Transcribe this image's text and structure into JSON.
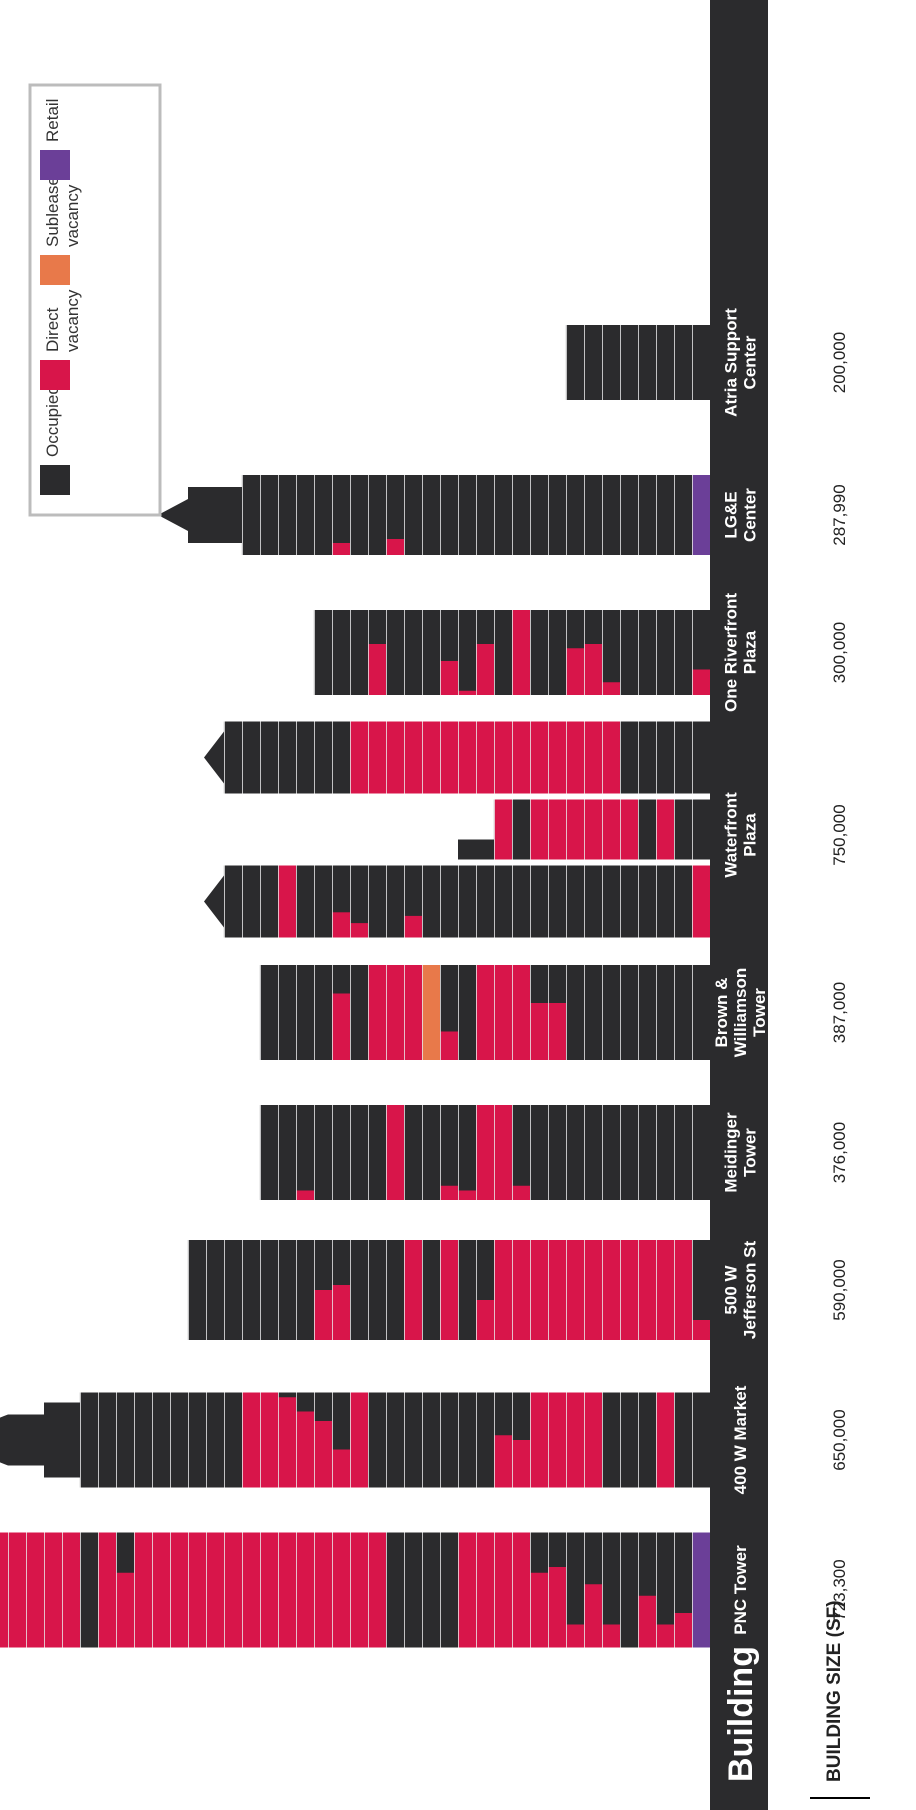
{
  "colors": {
    "occupied": "#2b2b2d",
    "direct_vacancy": "#d8154a",
    "sublease_vacancy": "#e8794a",
    "retail": "#6b3f98",
    "band": "#2b2b2d",
    "band_text": "#ffffff",
    "floor_line": "#e9e9e9"
  },
  "chart_data": {
    "type": "bar",
    "title": "",
    "header_label": "Building",
    "size_row_label": "BUILDING SIZE (SF)",
    "legend": [
      {
        "key": "occupied",
        "lines": [
          "Occupied"
        ]
      },
      {
        "key": "direct_vacancy",
        "lines": [
          "Direct",
          "vacancy"
        ]
      },
      {
        "key": "sublease_vacancy",
        "lines": [
          "Sublease",
          "vacancy"
        ]
      },
      {
        "key": "retail",
        "lines": [
          "Retail"
        ]
      }
    ],
    "buildings": [
      {
        "name_lines": [
          "PNC Tower"
        ],
        "size_sf": "723,300",
        "floors": 40,
        "top": "flat",
        "ground_floor": "retail",
        "direct_vacancy_floors": [
          1,
          11,
          12,
          13,
          14,
          19,
          20,
          21,
          22,
          23,
          24,
          25,
          26,
          27,
          28,
          29,
          30,
          31,
          32,
          34,
          36,
          37,
          38,
          39,
          40
        ],
        "partial_vacancy": [
          {
            "floor": 2,
            "share": 0.3
          },
          {
            "floor": 3,
            "share": 0.2
          },
          {
            "floor": 4,
            "share": 0.45
          },
          {
            "floor": 6,
            "share": 0.2
          },
          {
            "floor": 7,
            "share": 0.55
          },
          {
            "floor": 8,
            "share": 0.2
          },
          {
            "floor": 9,
            "share": 0.7
          },
          {
            "floor": 10,
            "share": 0.65
          },
          {
            "floor": 33,
            "share": 0.65
          }
        ]
      },
      {
        "name_lines": [
          "400 W Market"
        ],
        "size_sf": "650,000",
        "floors": 35,
        "top": "dome",
        "direct_vacancy_floors": [
          3,
          7,
          8,
          9,
          10,
          20,
          25,
          26
        ],
        "partial_vacancy": [
          {
            "floor": 11,
            "share": 0.5
          },
          {
            "floor": 12,
            "share": 0.55
          },
          {
            "floor": 21,
            "share": 0.4
          },
          {
            "floor": 22,
            "share": 0.7
          },
          {
            "floor": 23,
            "share": 0.8
          },
          {
            "floor": 24,
            "share": 0.95
          }
        ]
      },
      {
        "name_lines": [
          "500 W",
          "Jefferson St"
        ],
        "size_sf": "590,000",
        "floors": 29,
        "top": "flat",
        "direct_vacancy_floors": [
          2,
          3,
          4,
          5,
          6,
          7,
          8,
          9,
          10,
          11,
          12,
          15,
          17
        ],
        "partial_vacancy": [
          {
            "floor": 1,
            "share": 0.2
          },
          {
            "floor": 13,
            "share": 0.4
          },
          {
            "floor": 21,
            "share": 0.55
          },
          {
            "floor": 22,
            "share": 0.5
          }
        ]
      },
      {
        "name_lines": [
          "Meidinger",
          "Tower"
        ],
        "size_sf": "376,000",
        "floors": 25,
        "top": "flat",
        "direct_vacancy_floors": [
          12,
          13,
          18
        ],
        "partial_vacancy": [
          {
            "floor": 11,
            "share": 0.15
          },
          {
            "floor": 14,
            "share": 0.1
          },
          {
            "floor": 15,
            "share": 0.15
          },
          {
            "floor": 23,
            "share": 0.1
          }
        ]
      },
      {
        "name_lines": [
          "Brown &",
          "Williamson",
          "Tower"
        ],
        "size_sf": "387,000",
        "floors": 25,
        "top": "flat",
        "direct_vacancy_floors": [
          11,
          12,
          13,
          17,
          18,
          19
        ],
        "sublease_vacancy_floors": [
          16
        ],
        "partial_vacancy": [
          {
            "floor": 9,
            "share": 0.6
          },
          {
            "floor": 10,
            "share": 0.6
          },
          {
            "floor": 15,
            "share": 0.3
          },
          {
            "floor": 21,
            "share": 0.7
          }
        ]
      },
      {
        "name_lines": [
          "Waterfront",
          "Plaza"
        ],
        "size_sf": "750,000",
        "floors": 25,
        "top": "twin-towers",
        "direct_vacancy_floors": [
          11,
          24
        ],
        "partial_vacancy": [
          {
            "floor": 17,
            "share": 0.3
          },
          {
            "floor": 20,
            "share": 0.2
          },
          {
            "floor": 21,
            "share": 0.35
          }
        ],
        "center_wing_vacancy_floors": [
          6,
          7,
          8,
          9,
          10,
          11,
          12,
          13,
          14,
          15,
          16,
          17,
          18,
          19,
          20,
          21,
          22,
          23,
          24,
          25,
          26,
          27,
          28
        ],
        "right_wing_vacancy_floors": [
          3,
          5,
          6,
          7,
          8,
          9,
          10,
          12
        ]
      },
      {
        "name_lines": [
          "One Riverfront",
          "Plaza"
        ],
        "size_sf": "300,000",
        "floors": 22,
        "top": "flat",
        "direct_vacancy_floors": [
          11
        ],
        "partial_vacancy": [
          {
            "floor": 1,
            "share": 0.3
          },
          {
            "floor": 6,
            "share": 0.15
          },
          {
            "floor": 7,
            "share": 0.6
          },
          {
            "floor": 8,
            "share": 0.55
          },
          {
            "floor": 13,
            "share": 0.6
          },
          {
            "floor": 14,
            "share": 0.05
          },
          {
            "floor": 15,
            "share": 0.4
          },
          {
            "floor": 19,
            "share": 0.6
          }
        ]
      },
      {
        "name_lines": [
          "LG&E",
          "Center"
        ],
        "size_sf": "287,990",
        "floors": 26,
        "top": "spire",
        "ground_floor": "retail",
        "partial_vacancy": [
          {
            "floor": 18,
            "share": 0.2
          },
          {
            "floor": 21,
            "share": 0.15
          }
        ]
      },
      {
        "name_lines": [
          "Atria Support",
          "Center"
        ],
        "size_sf": "200,000",
        "floors": 8,
        "top": "flat"
      }
    ]
  }
}
